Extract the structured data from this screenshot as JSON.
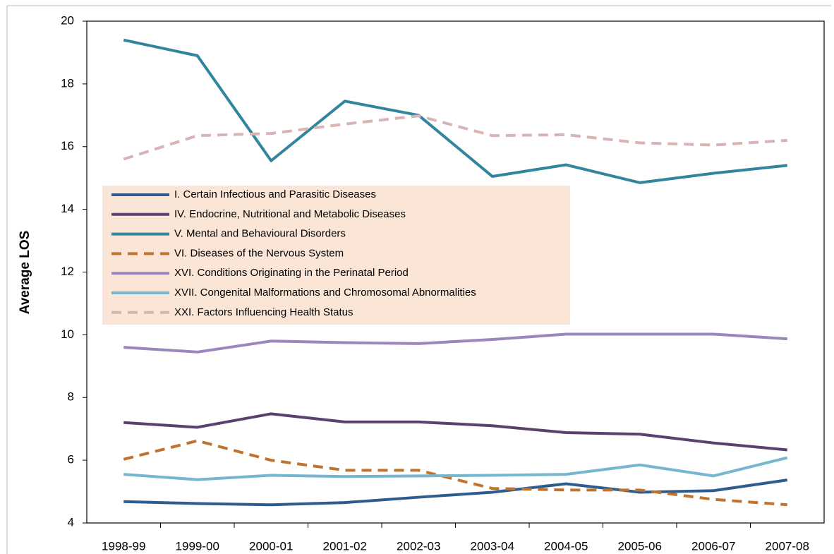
{
  "chart_data": {
    "type": "line",
    "y_label": "Average LOS",
    "categories": [
      "1998-99",
      "1999-00",
      "2000-01",
      "2001-02",
      "2002-03",
      "2003-04",
      "2004-05",
      "2005-06",
      "2006-07",
      "2007-08"
    ],
    "ylim": [
      4,
      20
    ],
    "yticks": [
      4,
      6,
      8,
      10,
      12,
      14,
      16,
      18,
      20
    ],
    "grid": false,
    "series": [
      {
        "name": "I. Certain Infectious and Parasitic Diseases",
        "color": "#2e5c8e",
        "dashed": false,
        "values": [
          4.68,
          4.62,
          4.58,
          4.65,
          4.82,
          4.98,
          5.25,
          4.98,
          5.03,
          5.37
        ]
      },
      {
        "name": "IV. Endocrine, Nutritional and Metabolic Diseases",
        "color": "#5b416f",
        "dashed": false,
        "values": [
          7.2,
          7.05,
          7.48,
          7.22,
          7.22,
          7.1,
          6.88,
          6.83,
          6.55,
          6.33
        ]
      },
      {
        "name": "V. Mental and Behavioural Disorders",
        "color": "#31859c",
        "dashed": false,
        "values": [
          19.4,
          18.9,
          15.55,
          17.45,
          17.0,
          15.05,
          15.42,
          14.85,
          15.15,
          15.4
        ]
      },
      {
        "name": "VI. Diseases of the Nervous System",
        "color": "#c0732f",
        "dashed": true,
        "values": [
          6.03,
          6.62,
          6.0,
          5.68,
          5.68,
          5.1,
          5.05,
          5.05,
          4.75,
          4.58
        ]
      },
      {
        "name": "XVI. Conditions Originating in the Perinatal Period",
        "color": "#9b87bb",
        "dashed": false,
        "values": [
          9.6,
          9.45,
          9.8,
          9.75,
          9.72,
          9.85,
          10.02,
          10.02,
          10.02,
          9.87
        ]
      },
      {
        "name": "XVII. Congenital Malformations and Chromosomal Abnormalities",
        "color": "#76b6cf",
        "dashed": false,
        "values": [
          5.55,
          5.38,
          5.52,
          5.48,
          5.5,
          5.52,
          5.55,
          5.85,
          5.5,
          6.08
        ]
      },
      {
        "name": "XXI. Factors Influencing Health Status",
        "color": "#d9b4b4",
        "dashed": true,
        "values": [
          15.6,
          16.35,
          16.42,
          16.72,
          16.98,
          16.35,
          16.38,
          16.12,
          16.05,
          16.2
        ]
      }
    ]
  }
}
